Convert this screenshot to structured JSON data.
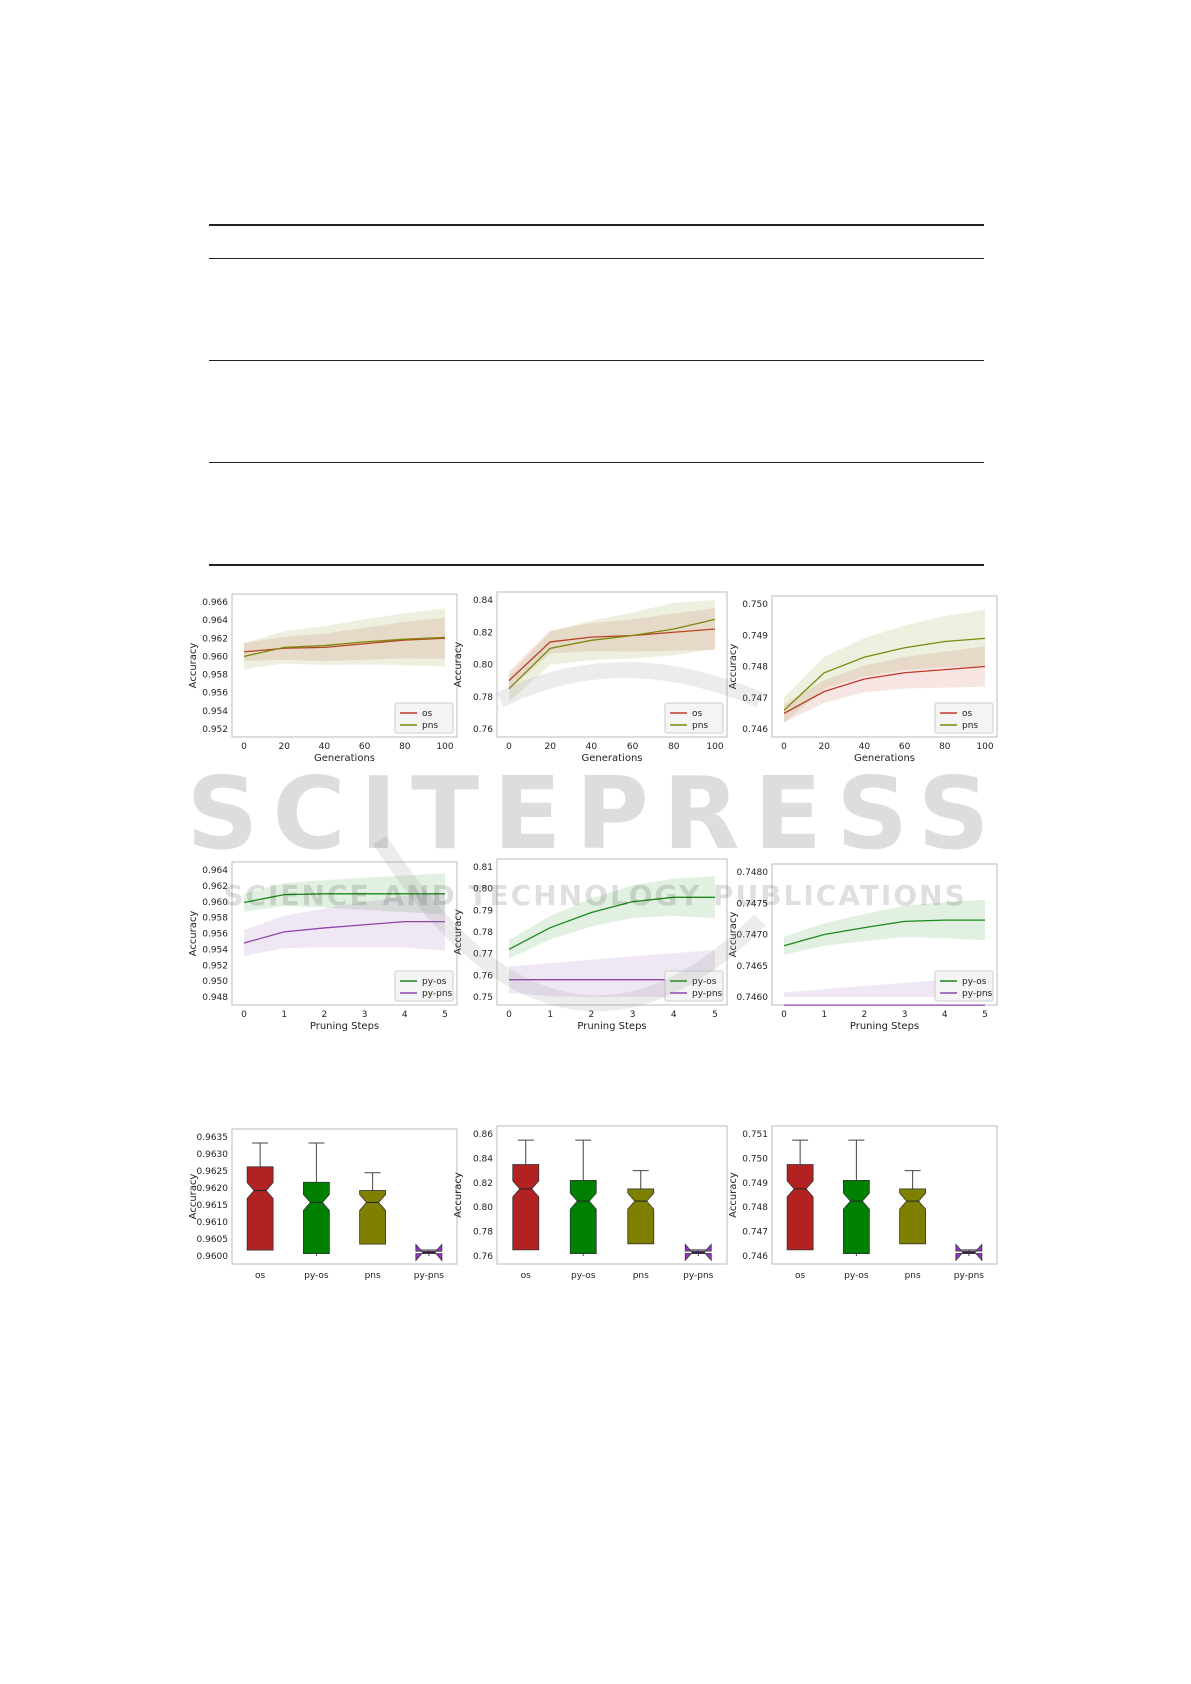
{
  "watermark": {
    "main": "SCITEPRESS",
    "sub": "SCIENCE AND TECHNOLOGY PUBLICATIONS"
  },
  "colors": {
    "os": "#c0392b",
    "pns": "#7b8a0b",
    "py_os": "#1a8a1a",
    "py_pns": "#8e44ad",
    "box_os": "#b22222",
    "box_py_os": "#008000",
    "box_pns": "#808000",
    "box_py_pns": "#9932cc"
  },
  "chart_data": [
    {
      "type": "line",
      "xlabel": "Generations",
      "ylabel": "Accuracy",
      "x": [
        0,
        20,
        40,
        60,
        80,
        100
      ],
      "xlim": [
        0,
        100
      ],
      "ylim": [
        0.952,
        0.966
      ],
      "yticks": [
        "0.966",
        "0.964",
        "0.962",
        "0.960",
        "0.958",
        "0.956",
        "0.954",
        "0.952"
      ],
      "xticks": [
        "0",
        "20",
        "40",
        "60",
        "80",
        "100"
      ],
      "series": [
        {
          "name": "os",
          "values": [
            0.9605,
            0.9609,
            0.961,
            0.9614,
            0.9618,
            0.962
          ]
        },
        {
          "name": "pns",
          "values": [
            0.96,
            0.961,
            0.9612,
            0.9616,
            0.9619,
            0.9621
          ]
        }
      ],
      "legend": "lower-right"
    },
    {
      "type": "line",
      "xlabel": "Generations",
      "ylabel": "Accuracy",
      "x": [
        0,
        20,
        40,
        60,
        80,
        100
      ],
      "xlim": [
        0,
        100
      ],
      "ylim": [
        0.76,
        0.84
      ],
      "yticks": [
        "0.84",
        "0.82",
        "0.80",
        "0.78",
        "0.76"
      ],
      "xticks": [
        "0",
        "20",
        "40",
        "60",
        "80",
        "100"
      ],
      "series": [
        {
          "name": "os",
          "values": [
            0.79,
            0.814,
            0.817,
            0.818,
            0.82,
            0.822
          ]
        },
        {
          "name": "pns",
          "values": [
            0.785,
            0.81,
            0.815,
            0.818,
            0.822,
            0.828
          ]
        }
      ],
      "legend": "lower-right"
    },
    {
      "type": "line",
      "xlabel": "Generations",
      "ylabel": "Accuracy",
      "x": [
        0,
        20,
        40,
        60,
        80,
        100
      ],
      "xlim": [
        0,
        100
      ],
      "ylim": [
        0.746,
        0.75
      ],
      "yticks": [
        "0.750",
        "0.749",
        "0.748",
        "0.747",
        "0.746"
      ],
      "xticks": [
        "0",
        "20",
        "40",
        "60",
        "80",
        "100"
      ],
      "series": [
        {
          "name": "os",
          "values": [
            0.7465,
            0.7472,
            0.7476,
            0.7478,
            0.7479,
            0.748
          ]
        },
        {
          "name": "pns",
          "values": [
            0.7466,
            0.7478,
            0.7483,
            0.7486,
            0.7488,
            0.7489
          ]
        }
      ],
      "legend": "lower-right"
    },
    {
      "type": "line",
      "xlabel": "Pruning Steps",
      "ylabel": "Accuracy",
      "x": [
        0,
        1,
        2,
        3,
        4,
        5
      ],
      "xlim": [
        0,
        5
      ],
      "ylim": [
        0.948,
        0.964
      ],
      "yticks": [
        "0.964",
        "0.962",
        "0.960",
        "0.958",
        "0.956",
        "0.954",
        "0.952",
        "0.950",
        "0.948"
      ],
      "xticks": [
        "0",
        "1",
        "2",
        "3",
        "4",
        "5"
      ],
      "series": [
        {
          "name": "py-os",
          "values": [
            0.9599,
            0.9609,
            0.961,
            0.961,
            0.961,
            0.961
          ]
        },
        {
          "name": "py-pns",
          "values": [
            0.9548,
            0.9562,
            0.9567,
            0.9571,
            0.9575,
            0.9575
          ]
        }
      ],
      "legend": "lower-right"
    },
    {
      "type": "line",
      "xlabel": "Pruning Steps",
      "ylabel": "Accuracy",
      "x": [
        0,
        1,
        2,
        3,
        4,
        5
      ],
      "xlim": [
        0,
        5
      ],
      "ylim": [
        0.75,
        0.81
      ],
      "yticks": [
        "0.81",
        "0.80",
        "0.79",
        "0.78",
        "0.77",
        "0.76",
        "0.75"
      ],
      "xticks": [
        "0",
        "1",
        "2",
        "3",
        "4",
        "5"
      ],
      "series": [
        {
          "name": "py-os",
          "values": [
            0.772,
            0.782,
            0.789,
            0.794,
            0.796,
            0.796
          ]
        },
        {
          "name": "py-pns",
          "values": [
            0.758,
            0.758,
            0.758,
            0.758,
            0.758,
            0.758
          ]
        }
      ],
      "legend": "lower-right"
    },
    {
      "type": "line",
      "xlabel": "Pruning Steps",
      "ylabel": "Accuracy",
      "x": [
        0,
        1,
        2,
        3,
        4,
        5
      ],
      "xlim": [
        0,
        5
      ],
      "ylim": [
        0.746,
        0.748
      ],
      "yticks": [
        "0.7480",
        "0.7475",
        "0.7470",
        "0.7465",
        "0.7460"
      ],
      "xticks": [
        "0",
        "1",
        "2",
        "3",
        "4",
        "5"
      ],
      "series": [
        {
          "name": "py-os",
          "values": [
            0.74682,
            0.747,
            0.74711,
            0.74721,
            0.74723,
            0.74723
          ]
        },
        {
          "name": "py-pns",
          "values": [
            0.74587,
            0.74587,
            0.74587,
            0.74587,
            0.74587,
            0.74587
          ]
        }
      ],
      "legend": "lower-right"
    },
    {
      "type": "box",
      "ylabel": "Accuracy",
      "categories": [
        "os",
        "py-os",
        "pns",
        "py-pns"
      ],
      "ylim": [
        0.96,
        0.9635
      ],
      "yticks": [
        "0.9635",
        "0.9630",
        "0.9625",
        "0.9620",
        "0.9615",
        "0.9610",
        "0.9605",
        "0.9600"
      ]
    },
    {
      "type": "box",
      "ylabel": "Accuracy",
      "categories": [
        "os",
        "py-os",
        "pns",
        "py-pns"
      ],
      "ylim": [
        0.76,
        0.86
      ],
      "yticks": [
        "0.86",
        "0.84",
        "0.82",
        "0.80",
        "0.78",
        "0.76"
      ]
    },
    {
      "type": "box",
      "ylabel": "Accuracy",
      "categories": [
        "os",
        "py-os",
        "pns",
        "py-pns"
      ],
      "ylim": [
        0.746,
        0.751
      ],
      "yticks": [
        "0.751",
        "0.750",
        "0.749",
        "0.748",
        "0.747",
        "0.746"
      ]
    }
  ]
}
